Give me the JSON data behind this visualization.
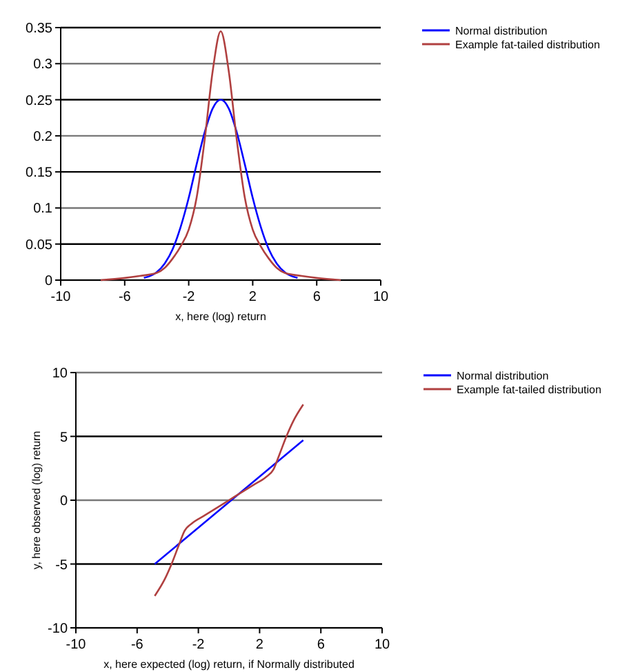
{
  "chart_data": [
    {
      "type": "line",
      "xlabel": "x, here (log) return",
      "xlim": [
        -10,
        10
      ],
      "xticks": [
        -10,
        -6,
        -2,
        2,
        6,
        10
      ],
      "ylim": [
        0,
        0.35
      ],
      "yticks": [
        0,
        0.05,
        0.1,
        0.15,
        0.2,
        0.25,
        0.3,
        0.35
      ],
      "grid": "y",
      "legend": "right",
      "marker": "none",
      "line_style": "solid",
      "series": [
        {
          "name": "Normal distribution",
          "color": "#0000ff",
          "x": [
            -4.8,
            -4,
            -3.5,
            -3,
            -2.5,
            -2,
            -1.5,
            -1,
            -0.5,
            0,
            0.5,
            1,
            1.5,
            2,
            2.5,
            3,
            3.5,
            4,
            4.8
          ],
          "values": [
            0.003,
            0.011,
            0.023,
            0.043,
            0.074,
            0.114,
            0.161,
            0.205,
            0.238,
            0.25,
            0.238,
            0.205,
            0.161,
            0.114,
            0.074,
            0.043,
            0.023,
            0.011,
            0.003
          ]
        },
        {
          "name": "Example fat-tailed distribution",
          "color": "#b04040",
          "x": [
            -7.5,
            -6,
            -5,
            -4,
            -3.5,
            -3,
            -2.5,
            -2,
            -1.5,
            -1,
            -0.5,
            0,
            0.5,
            1,
            1.5,
            2,
            2.5,
            3,
            3.5,
            4,
            5,
            6,
            7.5
          ],
          "values": [
            0,
            0.003,
            0.006,
            0.01,
            0.017,
            0.03,
            0.047,
            0.07,
            0.115,
            0.195,
            0.29,
            0.345,
            0.29,
            0.195,
            0.115,
            0.07,
            0.047,
            0.03,
            0.017,
            0.01,
            0.006,
            0.003,
            0
          ]
        }
      ]
    },
    {
      "type": "line",
      "xlabel": "x, here expected (log) return, if Normally distributed",
      "ylabel": "y, here observed (log) return",
      "xlim": [
        -10,
        10
      ],
      "xticks": [
        -10,
        -6,
        -2,
        2,
        6,
        10
      ],
      "ylim": [
        -10,
        10
      ],
      "yticks": [
        -10,
        -5,
        0,
        5,
        10
      ],
      "grid": "y",
      "legend": "right",
      "marker": "none",
      "line_style": "solid",
      "series": [
        {
          "name": "Normal distribution",
          "color": "#0000ff",
          "x": [
            -4.85,
            4.85
          ],
          "values": [
            -5,
            4.7
          ]
        },
        {
          "name": "Example fat-tailed distribution",
          "color": "#b04040",
          "x": [
            -4.85,
            -4.2,
            -3.75,
            -3.3,
            -2.9,
            -2.4,
            -1.6,
            -0.8,
            0,
            0.8,
            1.6,
            2.4,
            2.9,
            3.3,
            3.75,
            4.2,
            4.85
          ],
          "values": [
            -7.5,
            -6.2,
            -5,
            -3.6,
            -2.4,
            -1.8,
            -1.2,
            -0.6,
            0,
            0.6,
            1.2,
            1.8,
            2.4,
            3.6,
            5,
            6.2,
            7.5
          ]
        }
      ]
    }
  ]
}
